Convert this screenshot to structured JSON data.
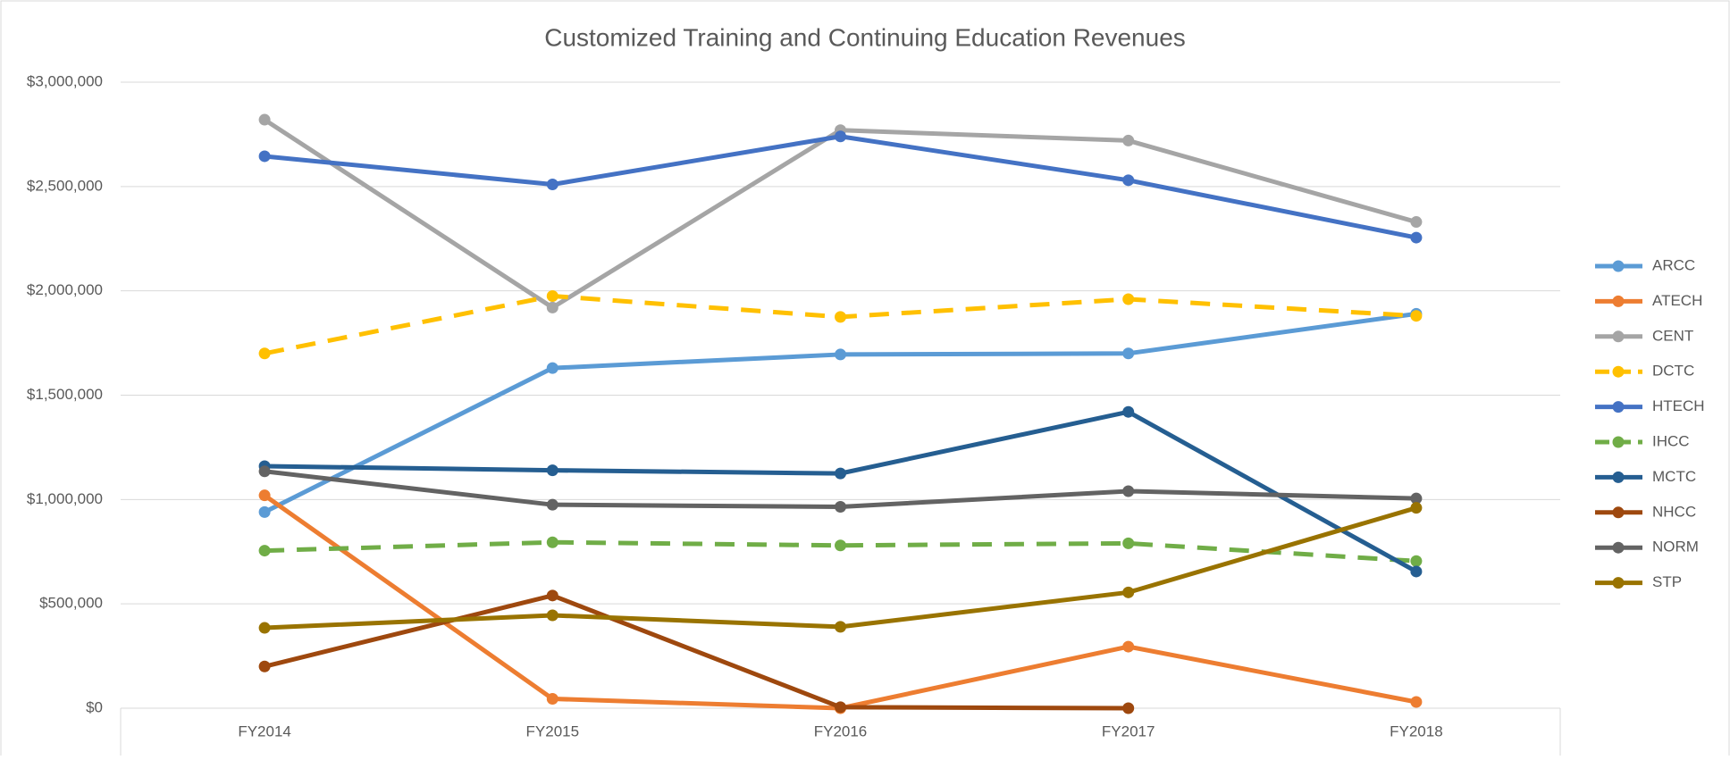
{
  "chart_data": {
    "type": "line",
    "title": "Customized Training and Continuing Education Revenues",
    "categories": [
      "FY2014",
      "FY2015",
      "FY2016",
      "FY2017",
      "FY2018"
    ],
    "ylim": [
      0,
      3000000
    ],
    "yticks": [
      {
        "value": 0,
        "label": "$0"
      },
      {
        "value": 500000,
        "label": "$500,000"
      },
      {
        "value": 1000000,
        "label": "$1,000,000"
      },
      {
        "value": 1500000,
        "label": "$1,500,000"
      },
      {
        "value": 2000000,
        "label": "$2,000,000"
      },
      {
        "value": 2500000,
        "label": "$2,500,000"
      },
      {
        "value": 3000000,
        "label": "$3,000,000"
      }
    ],
    "grid": true,
    "legend": "right",
    "series": [
      {
        "name": "ARCC",
        "color": "#5b9bd5",
        "line_style": "solid",
        "values": [
          940000,
          1630000,
          1695000,
          1700000,
          1890000
        ]
      },
      {
        "name": "ATECH",
        "color": "#ed7d31",
        "line_style": "solid",
        "values": [
          1020000,
          45000,
          0,
          295000,
          30000
        ]
      },
      {
        "name": "CENT",
        "color": "#a5a5a5",
        "line_style": "solid",
        "values": [
          2820000,
          1920000,
          2770000,
          2720000,
          2330000
        ]
      },
      {
        "name": "DCTC",
        "color": "#ffc000",
        "line_style": "dashed",
        "values": [
          1700000,
          1975000,
          1875000,
          1960000,
          1880000
        ]
      },
      {
        "name": "HTECH",
        "color": "#4472c4",
        "line_style": "solid",
        "values": [
          2645000,
          2510000,
          2740000,
          2530000,
          2255000
        ]
      },
      {
        "name": "IHCC",
        "color": "#70ad47",
        "line_style": "dashed",
        "values": [
          755000,
          795000,
          780000,
          790000,
          705000
        ]
      },
      {
        "name": "MCTC",
        "color": "#255e91",
        "line_style": "solid",
        "values": [
          1160000,
          1140000,
          1125000,
          1420000,
          655000
        ]
      },
      {
        "name": "NHCC",
        "color": "#9e480e",
        "line_style": "solid",
        "values": [
          200000,
          540000,
          5000,
          0,
          null
        ]
      },
      {
        "name": "NORM",
        "color": "#636363",
        "line_style": "solid",
        "values": [
          1135000,
          975000,
          965000,
          1040000,
          1005000
        ]
      },
      {
        "name": "STP",
        "color": "#997300",
        "line_style": "solid",
        "values": [
          385000,
          445000,
          390000,
          555000,
          960000
        ]
      }
    ]
  }
}
